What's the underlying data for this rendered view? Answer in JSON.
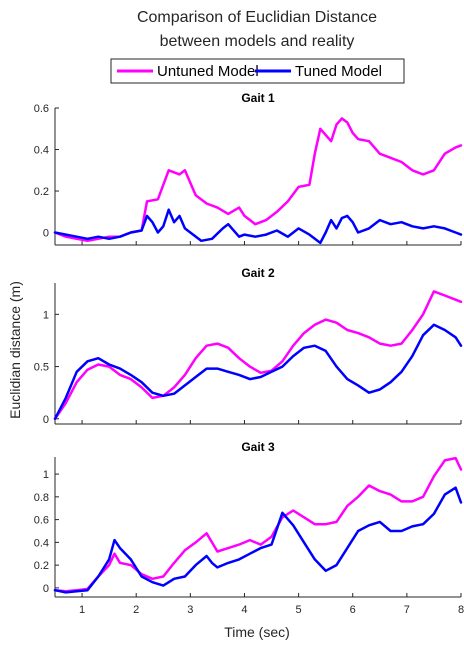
{
  "chart_data": {
    "type": "line",
    "title_lines": [
      "Comparison of Euclidian Distance",
      "between models and reality"
    ],
    "xlabel": "Time (sec)",
    "ylabel": "Euclidian distance (m)",
    "xlim": [
      0.5,
      8
    ],
    "xticks": [
      1,
      2,
      3,
      4,
      5,
      6,
      7,
      8
    ],
    "legend": {
      "placement": "top-center",
      "entries": [
        {
          "name": "Untuned Model",
          "color": "#ff00ff"
        },
        {
          "name": "Tuned Model",
          "color": "#0000ff"
        }
      ]
    },
    "series_colors": {
      "untuned": "#ff00ff",
      "tuned": "#0000ff"
    },
    "subplots": [
      {
        "title": "Gait 1",
        "ylim": [
          -0.06,
          0.6
        ],
        "yticks": [
          0,
          0.2,
          0.4,
          0.6
        ],
        "ytick_labels": [
          "0",
          "0.2",
          "0.4",
          "0.6"
        ],
        "series": [
          {
            "name": "Untuned Model",
            "x": [
              0.5,
              0.7,
              0.9,
              1.1,
              1.3,
              1.5,
              1.7,
              1.9,
              2.1,
              2.2,
              2.4,
              2.6,
              2.8,
              2.9,
              3.0,
              3.1,
              3.3,
              3.5,
              3.7,
              3.9,
              4.0,
              4.2,
              4.4,
              4.6,
              4.8,
              5.0,
              5.2,
              5.3,
              5.4,
              5.6,
              5.7,
              5.8,
              5.9,
              6.0,
              6.1,
              6.3,
              6.5,
              6.7,
              6.9,
              7.1,
              7.3,
              7.5,
              7.7,
              7.9,
              8.0
            ],
            "y": [
              0.0,
              -0.02,
              -0.03,
              -0.04,
              -0.03,
              -0.02,
              -0.02,
              0.0,
              0.01,
              0.15,
              0.16,
              0.3,
              0.28,
              0.3,
              0.24,
              0.18,
              0.14,
              0.12,
              0.09,
              0.12,
              0.08,
              0.04,
              0.06,
              0.1,
              0.15,
              0.22,
              0.23,
              0.38,
              0.5,
              0.44,
              0.52,
              0.55,
              0.53,
              0.48,
              0.45,
              0.44,
              0.38,
              0.36,
              0.34,
              0.3,
              0.28,
              0.3,
              0.38,
              0.41,
              0.42
            ]
          },
          {
            "name": "Tuned Model",
            "x": [
              0.5,
              0.7,
              0.9,
              1.1,
              1.3,
              1.5,
              1.7,
              1.9,
              2.1,
              2.2,
              2.3,
              2.4,
              2.5,
              2.6,
              2.7,
              2.8,
              2.9,
              3.0,
              3.2,
              3.4,
              3.6,
              3.7,
              3.9,
              4.0,
              4.2,
              4.4,
              4.6,
              4.8,
              5.0,
              5.2,
              5.4,
              5.5,
              5.6,
              5.7,
              5.8,
              5.9,
              6.0,
              6.1,
              6.3,
              6.5,
              6.7,
              6.9,
              7.1,
              7.3,
              7.5,
              7.7,
              7.9,
              8.0
            ],
            "y": [
              0.0,
              -0.01,
              -0.02,
              -0.03,
              -0.02,
              -0.03,
              -0.02,
              0.0,
              0.01,
              0.08,
              0.05,
              0.0,
              0.03,
              0.11,
              0.05,
              0.08,
              0.02,
              0.0,
              -0.04,
              -0.03,
              0.02,
              0.04,
              -0.02,
              -0.01,
              -0.02,
              -0.01,
              0.01,
              -0.02,
              0.02,
              -0.01,
              -0.05,
              0.0,
              0.06,
              0.02,
              0.07,
              0.08,
              0.05,
              0.0,
              0.02,
              0.06,
              0.04,
              0.05,
              0.03,
              0.02,
              0.03,
              0.02,
              0.0,
              -0.01
            ]
          }
        ]
      },
      {
        "title": "Gait 2",
        "ylim": [
          -0.05,
          1.3
        ],
        "yticks": [
          0,
          0.5,
          1
        ],
        "ytick_labels": [
          "0",
          "0.5",
          "1"
        ],
        "series": [
          {
            "name": "Untuned Model",
            "x": [
              0.5,
              0.7,
              0.9,
              1.1,
              1.3,
              1.5,
              1.7,
              1.9,
              2.1,
              2.3,
              2.5,
              2.7,
              2.9,
              3.1,
              3.3,
              3.5,
              3.7,
              3.9,
              4.1,
              4.3,
              4.5,
              4.7,
              4.9,
              5.1,
              5.3,
              5.5,
              5.7,
              5.9,
              6.1,
              6.3,
              6.5,
              6.7,
              6.9,
              7.1,
              7.3,
              7.5,
              7.7,
              7.9,
              8.0
            ],
            "y": [
              0.0,
              0.15,
              0.35,
              0.47,
              0.52,
              0.5,
              0.42,
              0.38,
              0.3,
              0.2,
              0.22,
              0.3,
              0.42,
              0.58,
              0.7,
              0.72,
              0.68,
              0.58,
              0.5,
              0.44,
              0.46,
              0.55,
              0.7,
              0.82,
              0.9,
              0.95,
              0.92,
              0.85,
              0.82,
              0.78,
              0.72,
              0.7,
              0.72,
              0.85,
              1.0,
              1.22,
              1.18,
              1.14,
              1.12
            ]
          },
          {
            "name": "Tuned Model",
            "x": [
              0.5,
              0.7,
              0.9,
              1.1,
              1.3,
              1.5,
              1.7,
              1.9,
              2.1,
              2.3,
              2.5,
              2.7,
              2.9,
              3.1,
              3.3,
              3.5,
              3.7,
              3.9,
              4.1,
              4.3,
              4.5,
              4.7,
              4.9,
              5.1,
              5.3,
              5.5,
              5.7,
              5.9,
              6.1,
              6.3,
              6.5,
              6.7,
              6.9,
              7.1,
              7.3,
              7.5,
              7.7,
              7.9,
              8.0
            ],
            "y": [
              0.0,
              0.2,
              0.45,
              0.55,
              0.58,
              0.52,
              0.48,
              0.42,
              0.35,
              0.25,
              0.22,
              0.24,
              0.32,
              0.4,
              0.48,
              0.48,
              0.45,
              0.42,
              0.38,
              0.4,
              0.45,
              0.5,
              0.6,
              0.68,
              0.7,
              0.65,
              0.5,
              0.38,
              0.32,
              0.25,
              0.28,
              0.35,
              0.45,
              0.6,
              0.8,
              0.9,
              0.85,
              0.78,
              0.7
            ]
          }
        ]
      },
      {
        "title": "Gait 3",
        "ylim": [
          -0.08,
          1.15
        ],
        "yticks": [
          0,
          0.2,
          0.4,
          0.6,
          0.8,
          1
        ],
        "ytick_labels": [
          "0",
          "0.2",
          "0.4",
          "0.6",
          "0.8",
          "1"
        ],
        "series": [
          {
            "name": "Untuned Model",
            "x": [
              0.5,
              0.7,
              0.9,
              1.1,
              1.3,
              1.5,
              1.6,
              1.7,
              1.9,
              2.1,
              2.3,
              2.5,
              2.7,
              2.9,
              3.1,
              3.3,
              3.4,
              3.5,
              3.7,
              3.9,
              4.1,
              4.3,
              4.5,
              4.7,
              4.9,
              5.1,
              5.3,
              5.5,
              5.7,
              5.9,
              6.1,
              6.3,
              6.5,
              6.7,
              6.9,
              7.1,
              7.3,
              7.5,
              7.7,
              7.9,
              8.0
            ],
            "y": [
              -0.02,
              -0.03,
              -0.02,
              -0.01,
              0.1,
              0.2,
              0.3,
              0.22,
              0.2,
              0.12,
              0.08,
              0.1,
              0.22,
              0.33,
              0.4,
              0.48,
              0.4,
              0.32,
              0.35,
              0.38,
              0.42,
              0.38,
              0.45,
              0.62,
              0.68,
              0.62,
              0.56,
              0.56,
              0.58,
              0.72,
              0.8,
              0.9,
              0.85,
              0.82,
              0.76,
              0.76,
              0.8,
              0.98,
              1.12,
              1.14,
              1.04
            ]
          },
          {
            "name": "Tuned Model",
            "x": [
              0.5,
              0.7,
              0.9,
              1.1,
              1.3,
              1.5,
              1.6,
              1.7,
              1.9,
              2.1,
              2.3,
              2.5,
              2.7,
              2.9,
              3.1,
              3.3,
              3.4,
              3.5,
              3.7,
              3.9,
              4.1,
              4.3,
              4.5,
              4.7,
              4.9,
              5.1,
              5.3,
              5.5,
              5.7,
              5.9,
              6.1,
              6.3,
              6.5,
              6.7,
              6.9,
              7.1,
              7.3,
              7.5,
              7.7,
              7.9,
              8.0
            ],
            "y": [
              -0.02,
              -0.04,
              -0.03,
              -0.02,
              0.1,
              0.25,
              0.42,
              0.35,
              0.25,
              0.1,
              0.05,
              0.02,
              0.08,
              0.1,
              0.2,
              0.28,
              0.22,
              0.18,
              0.22,
              0.25,
              0.3,
              0.35,
              0.38,
              0.66,
              0.55,
              0.4,
              0.25,
              0.15,
              0.2,
              0.35,
              0.5,
              0.55,
              0.58,
              0.5,
              0.5,
              0.54,
              0.56,
              0.65,
              0.82,
              0.88,
              0.75
            ]
          }
        ]
      }
    ]
  }
}
